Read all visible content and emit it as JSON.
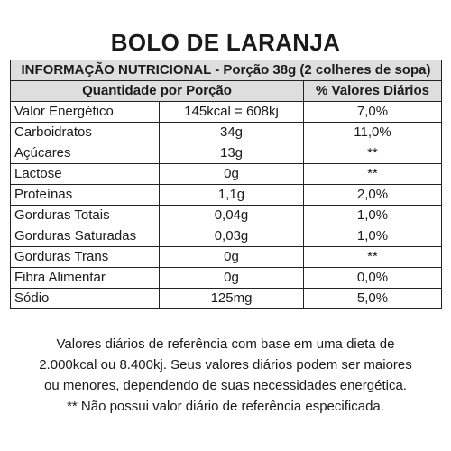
{
  "title": "BOLO DE LARANJA",
  "table": {
    "header": "INFORMAÇÃO NUTRICIONAL - Porção 38g (2 colheres de sopa)",
    "col_qty": "Quantidade por Porção",
    "col_dv": "% Valores Diários",
    "rows": [
      {
        "name": "Valor Energético",
        "qty": "145kcal = 608kj",
        "dv": "7,0%"
      },
      {
        "name": "Carboidratos",
        "qty": "34g",
        "dv": "11,0%"
      },
      {
        "name": "Açúcares",
        "qty": "13g",
        "dv": "**"
      },
      {
        "name": "Lactose",
        "qty": "0g",
        "dv": "**"
      },
      {
        "name": "Proteínas",
        "qty": "1,1g",
        "dv": "2,0%"
      },
      {
        "name": "Gorduras Totais",
        "qty": "0,04g",
        "dv": "1,0%"
      },
      {
        "name": "Gorduras Saturadas",
        "qty": "0,03g",
        "dv": "1,0%"
      },
      {
        "name": "Gorduras Trans",
        "qty": "0g",
        "dv": "**"
      },
      {
        "name": "Fibra Alimentar",
        "qty": "0g",
        "dv": "0,0%"
      },
      {
        "name": "Sódio",
        "qty": "125mg",
        "dv": "5,0%"
      }
    ]
  },
  "footnote": {
    "line1": "Valores diários de referência com base em uma dieta de",
    "line2": "2.000kcal ou 8.400kj. Seus valores diários podem ser maiores",
    "line3": "ou menores, dependendo de suas necessidades energética.",
    "line4": "** Não possui valor diário de referência especificada."
  }
}
